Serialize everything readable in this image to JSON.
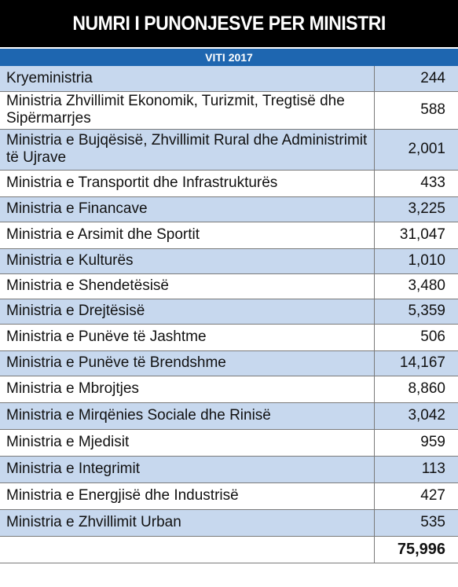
{
  "chart_data": {
    "type": "table",
    "title": "NUMRI I PUNONJESVE PER MINISTRI",
    "subtitle": "VITI 2017",
    "rows": [
      {
        "label": "Kryeministria",
        "value": "244"
      },
      {
        "label": "Ministria Zhvillimit Ekonomik, Turizmit, Tregtisë dhe Sipërmarrjes",
        "value": "588"
      },
      {
        "label": "Ministria e Bujqësisë, Zhvillimit Rural dhe Administrimit të Ujrave",
        "value": "2,001"
      },
      {
        "label": "Ministria e Transportit dhe Infrastrukturës",
        "value": "433"
      },
      {
        "label": "Ministria e Financave",
        "value": "3,225"
      },
      {
        "label": "Ministria e Arsimit dhe Sportit",
        "value": "31,047"
      },
      {
        "label": "Ministria e Kulturës",
        "value": "1,010"
      },
      {
        "label": "Ministria e Shendetësisë",
        "value": "3,480"
      },
      {
        "label": "Ministria e Drejtësisë",
        "value": "5,359"
      },
      {
        "label": "Ministria e Punëve të Jashtme",
        "value": "506"
      },
      {
        "label": "Ministria e Punëve të Brendshme",
        "value": "14,167"
      },
      {
        "label": "Ministria e Mbrojtjes",
        "value": "8,860"
      },
      {
        "label": "Ministria e Mirqënies Sociale dhe Rinisë",
        "value": "3,042"
      },
      {
        "label": "Ministria e Mjedisit",
        "value": "959"
      },
      {
        "label": "Ministria e Integrimit",
        "value": "113"
      },
      {
        "label": "Ministria e Energjisë dhe Industrisë",
        "value": "427"
      },
      {
        "label": "Ministria e Zhvillimit Urban",
        "value": "535"
      }
    ],
    "total": "75,996",
    "colors": {
      "title_bg": "#000000",
      "header_bg": "#1e66b0",
      "row_shade": "#c7d8ee",
      "row_plain": "#ffffff"
    }
  }
}
